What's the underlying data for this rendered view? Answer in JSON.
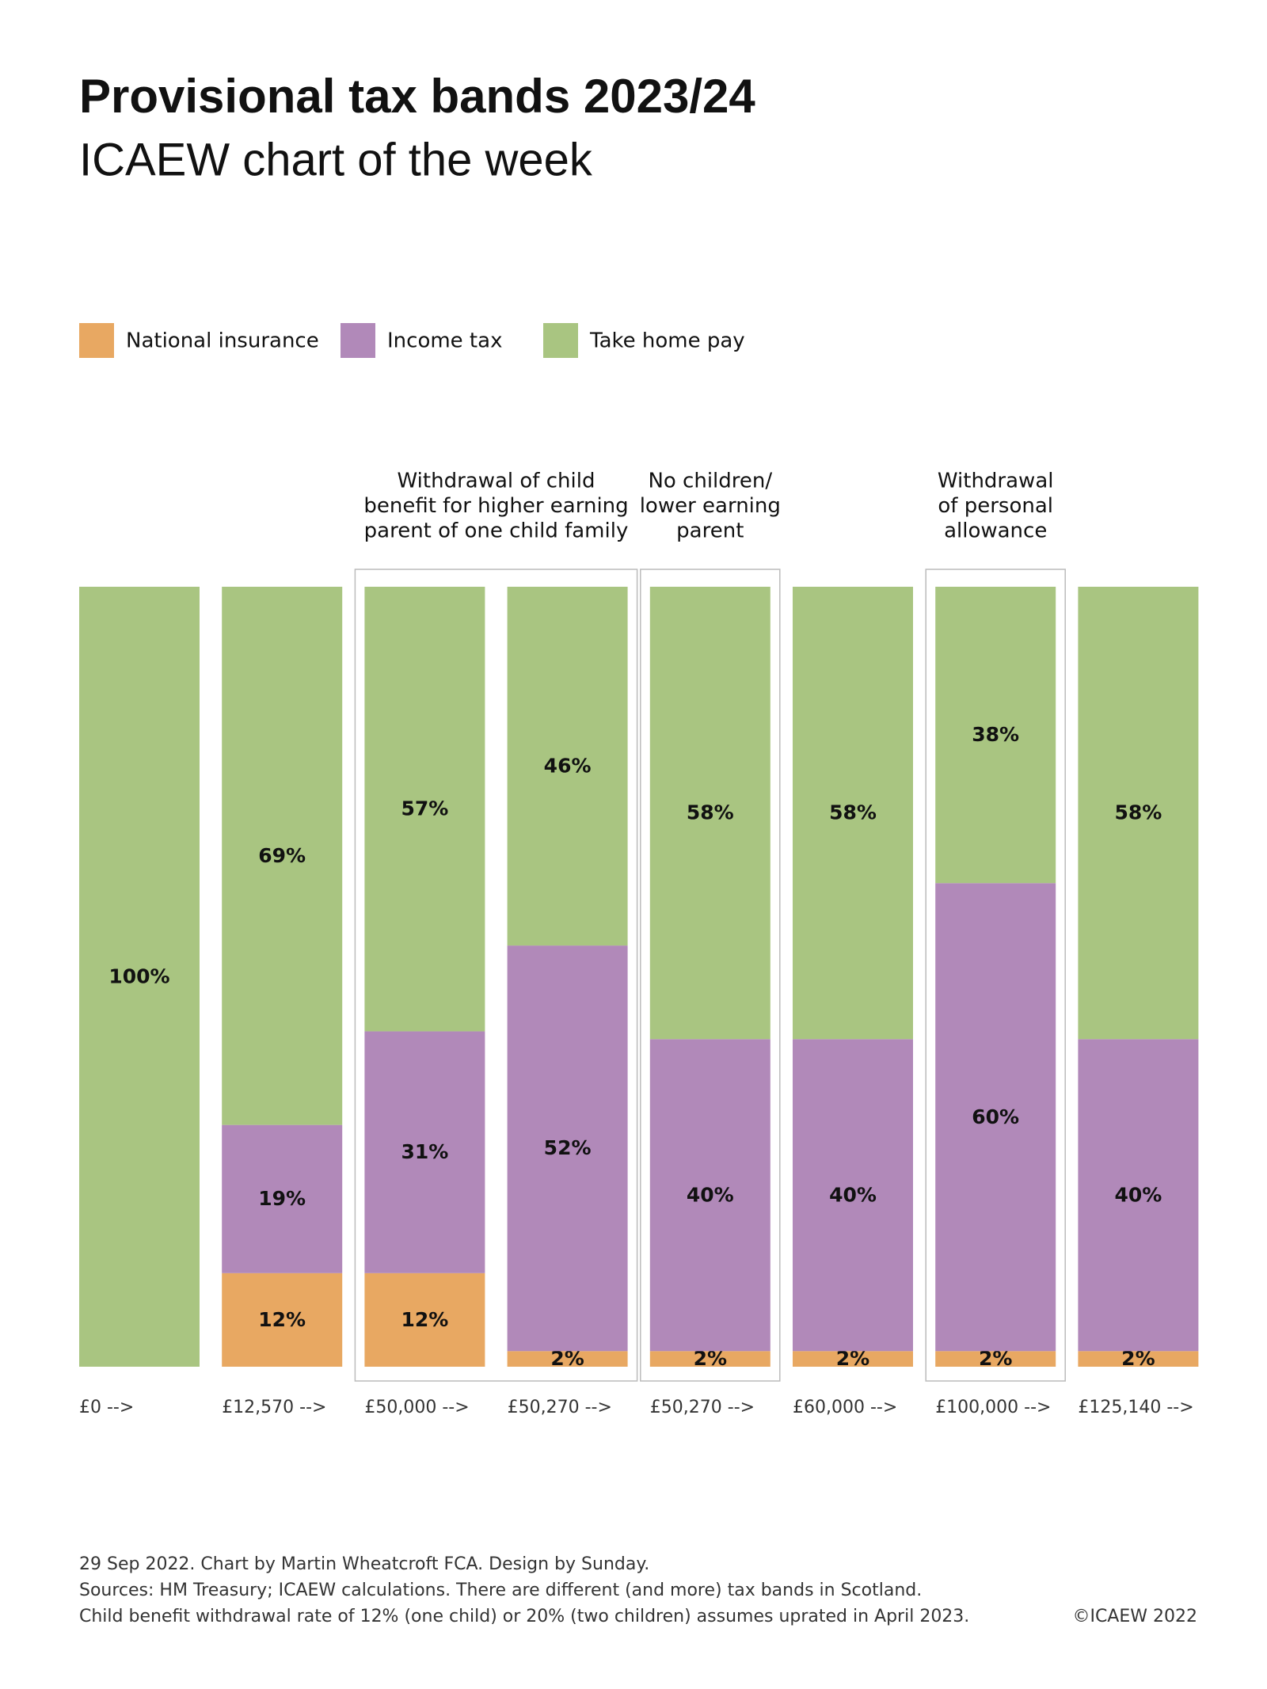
{
  "chart_data": {
    "type": "stacked-bar",
    "title": "Provisional tax bands 2023/24",
    "subtitle": "ICAEW chart of the week",
    "categories": [
      "£0 -->",
      "£12,570 -->",
      "£50,000 -->",
      "£50,270 -->",
      "£50,270 -->",
      "£60,000 -->",
      "£100,000 -->",
      "£125,140 -->"
    ],
    "series": [
      {
        "name": "National insurance",
        "color": "#e8a862",
        "values": [
          0,
          12,
          12,
          2,
          2,
          2,
          2,
          2
        ],
        "value_labels": [
          null,
          "12%",
          "12%",
          "2%",
          "2%",
          "2%",
          "2%",
          "2%"
        ]
      },
      {
        "name": "Income tax",
        "color": "#b189b9",
        "values": [
          0,
          19,
          31,
          52,
          40,
          40,
          60,
          40
        ],
        "value_labels": [
          null,
          "19%",
          "31%",
          "52%",
          "40%",
          "40%",
          "60%",
          "40%"
        ]
      },
      {
        "name": "Take home pay",
        "color": "#a9c581",
        "values": [
          100,
          69,
          57,
          46,
          58,
          58,
          38,
          58
        ],
        "value_labels": [
          "100%",
          "69%",
          "57%",
          "46%",
          "58%",
          "58%",
          "38%",
          "58%"
        ]
      }
    ],
    "ylim": [
      0,
      100
    ],
    "annotations": [
      {
        "lines": [
          "Withdrawal of child",
          "benefit for higher earning",
          "parent of one child family"
        ]
      },
      {
        "lines": [
          "No children/",
          "lower earning",
          "parent"
        ]
      },
      {
        "lines": [
          "Withdrawal",
          "of personal",
          "allowance"
        ]
      }
    ],
    "footnotes": [
      "29 Sep 2022.   Chart by Martin Wheatcroft FCA. Design by Sunday.",
      "Sources: HM Treasury; ICAEW calculations.  There are different (and more) tax bands in Scotland.",
      "Child benefit withdrawal rate of 12% (one child) or 20% (two children) assumes uprated in April 2023."
    ],
    "copyright": "©ICAEW 2022"
  }
}
